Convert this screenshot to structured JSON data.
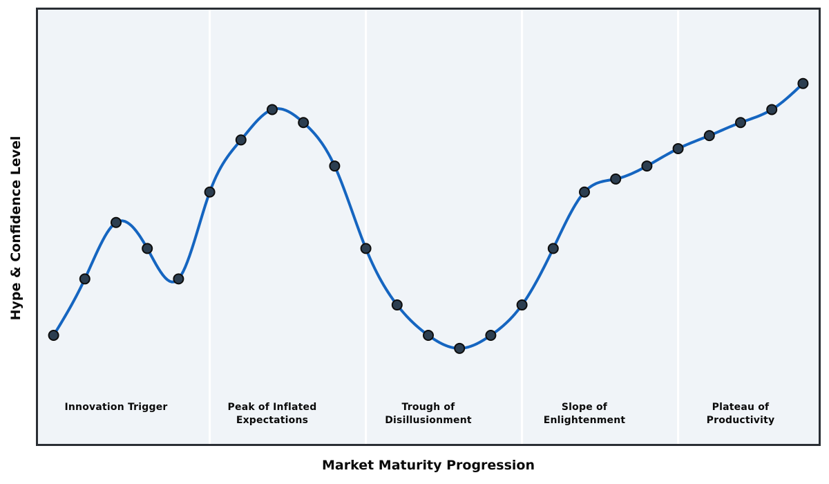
{
  "chart_data": {
    "type": "line",
    "title": "",
    "xlabel": "Market Maturity Progression",
    "ylabel": "Hype & Confidence Level",
    "x": [
      0,
      1,
      2,
      3,
      4,
      5,
      6,
      7,
      8,
      9,
      10,
      11,
      12,
      13,
      14,
      15,
      16,
      17,
      18,
      19,
      20,
      21,
      22,
      23,
      24
    ],
    "series": [
      {
        "name": "Hype & Confidence Level",
        "values": [
          25,
          38,
          51,
          45,
          38,
          58,
          70,
          77,
          74,
          64,
          45,
          32,
          25,
          22,
          25,
          32,
          45,
          58,
          61,
          64,
          68,
          71,
          74,
          77,
          83
        ]
      }
    ],
    "xlim": [
      -0.5,
      24.5
    ],
    "ylim": [
      0,
      100
    ],
    "grid": false,
    "legend": "none",
    "smooth": true,
    "marker": "circle",
    "ticks": "none",
    "phase_separators_x": [
      5,
      10,
      15,
      20
    ],
    "phases": [
      {
        "label": "Innovation Trigger",
        "center_x": 2
      },
      {
        "label": "Peak of Inflated\nExpectations",
        "center_x": 7
      },
      {
        "label": "Trough of\nDisillusionment",
        "center_x": 12
      },
      {
        "label": "Slope of\nEnlightenment",
        "center_x": 17
      },
      {
        "label": "Plateau of\nProductivity",
        "center_x": 22
      }
    ]
  },
  "colors": {
    "figure_bg": "#ffffff",
    "axes_bg": "#f0f4f8",
    "frame": "#2a2e34",
    "line": "#1565c0",
    "marker_fill": "#2c3e50",
    "marker_edge": "#0d0d0d",
    "separator": "#ffffff",
    "text": "#0a0a0a"
  }
}
